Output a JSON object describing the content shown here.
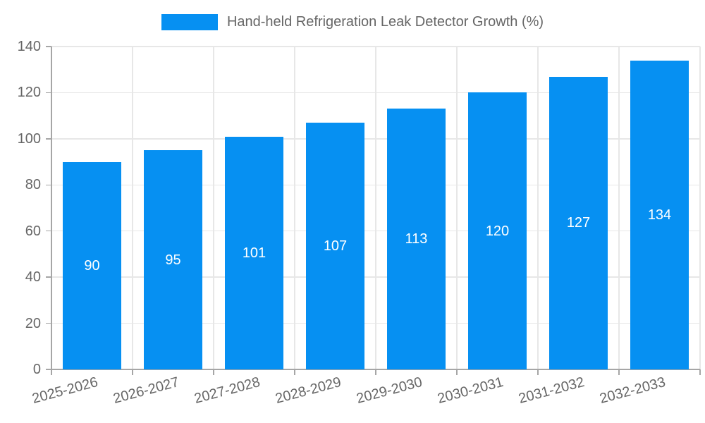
{
  "chart_data": {
    "type": "bar",
    "title": "Hand-held Refrigeration Leak Detector Growth (%)",
    "categories": [
      "2025-2026",
      "2026-2027",
      "2027-2028",
      "2028-2029",
      "2029-2030",
      "2030-2031",
      "2031-2032",
      "2032-2033"
    ],
    "values": [
      90,
      95,
      101,
      107,
      113,
      120,
      127,
      134
    ],
    "yticks": [
      0,
      20,
      40,
      60,
      80,
      100,
      120,
      140
    ],
    "ylim": [
      0,
      140
    ],
    "xlabel": "",
    "ylabel": "",
    "grid": true,
    "legend_position": "top-center",
    "x_label_rotation_deg": -15,
    "colors": {
      "bar": "#0690F2",
      "value_label": "#FFFFFF",
      "tick_label": "#666666",
      "legend_label": "#666666",
      "grid": "#E7E7E7",
      "axis": "#A6A6A6",
      "background": "#FFFFFF"
    }
  }
}
